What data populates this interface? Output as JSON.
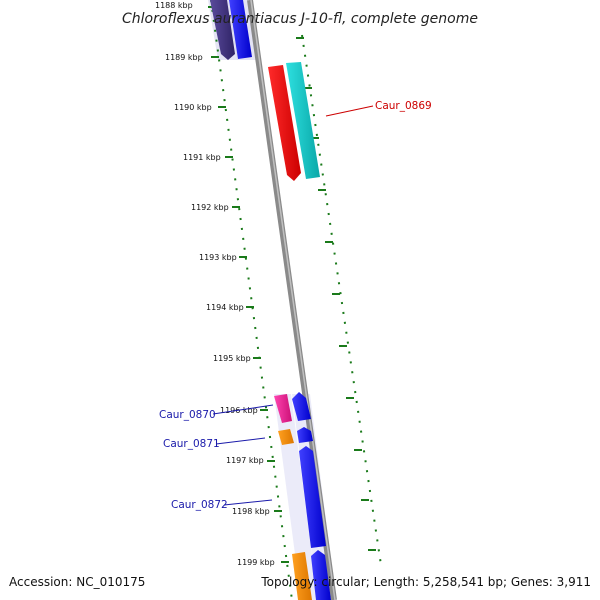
{
  "title": "Chloroflexus aurantiacus J-10-fl, complete genome",
  "footer": {
    "accession": "Accession: NC_010175",
    "topology": "Topology: circular; Length: 5,258,541 bp; Genes: 3,911"
  },
  "scale": {
    "ticks": [
      "1188 kbp",
      "1189 kbp",
      "1190 kbp",
      "1191 kbp",
      "1192 kbp",
      "1193 kbp",
      "1194 kbp",
      "1195 kbp",
      "1196 kbp",
      "1197 kbp",
      "1198 kbp",
      "1199 kbp"
    ]
  },
  "genes": [
    {
      "id": "g-purple-top",
      "strand": "plus",
      "color": "#4a3b86"
    },
    {
      "id": "g-blue-top",
      "strand": "plus",
      "color": "#1010ee"
    },
    {
      "id": "g-red-0869",
      "strand": "minus",
      "color": "#ee0000"
    },
    {
      "id": "g-cyan-0869",
      "strand": "plus",
      "color": "#12cccc"
    },
    {
      "id": "g-magenta-0870",
      "strand": "minus",
      "color": "#ee2299"
    },
    {
      "id": "g-blue-0870",
      "strand": "plus",
      "color": "#1010ee"
    },
    {
      "id": "g-orange-0871",
      "strand": "minus",
      "color": "#ff8c00"
    },
    {
      "id": "g-blue-0871",
      "strand": "plus",
      "color": "#1010ee"
    },
    {
      "id": "g-blue-0872",
      "strand": "plus",
      "color": "#1010ee"
    },
    {
      "id": "g-orange-bottom",
      "strand": "minus",
      "color": "#ff9900"
    },
    {
      "id": "g-blue-bottom",
      "strand": "plus",
      "color": "#1010ee"
    }
  ],
  "callouts": [
    {
      "label": "Caur_0869",
      "color": "#cc0000"
    },
    {
      "label": "Caur_0870",
      "color": "#1a1aaa"
    },
    {
      "label": "Caur_0871",
      "color": "#1a1aaa"
    },
    {
      "label": "Caur_0872",
      "color": "#1a1aaa"
    }
  ]
}
